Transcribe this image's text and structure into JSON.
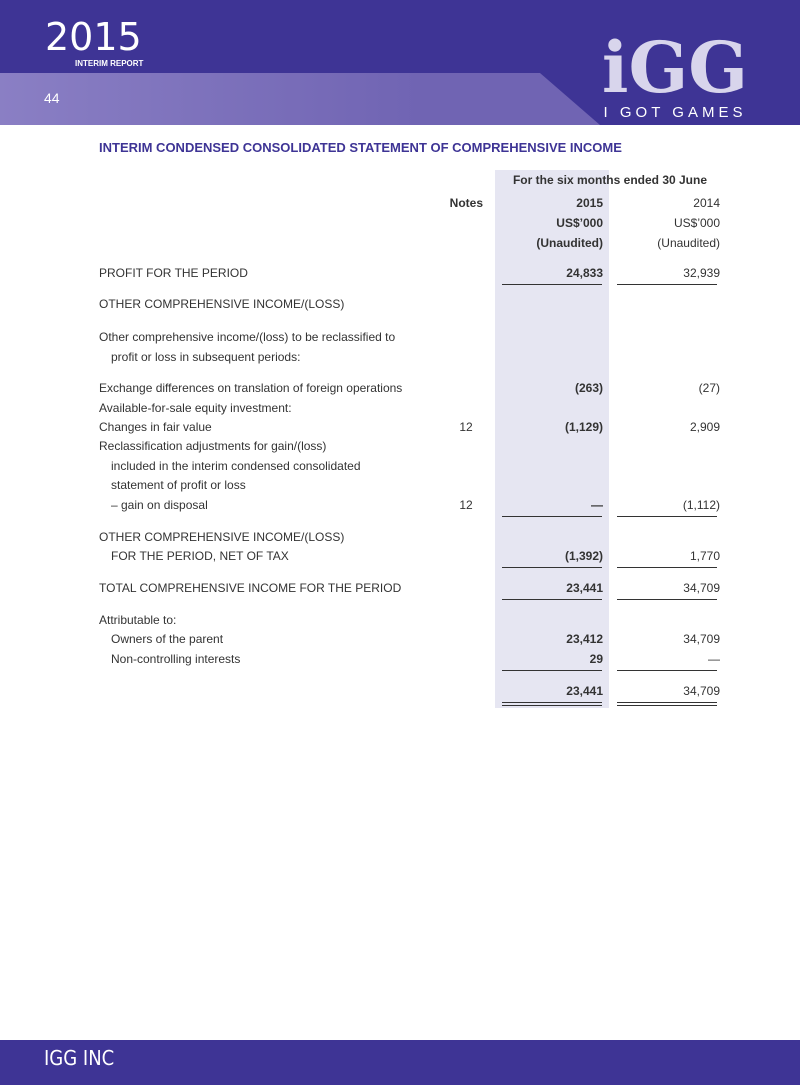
{
  "header": {
    "year": "2015",
    "report": "INTERIM REPORT",
    "page": "44",
    "logo": "iGG",
    "tagline": "I GOT GAMES"
  },
  "title": "INTERIM CONDENSED CONSOLIDATED STATEMENT OF COMPREHENSIVE INCOME",
  "table": {
    "period": "For the six months ended 30 June",
    "notes_header": "Notes",
    "columns": [
      {
        "year": "2015",
        "unit": "US$’000",
        "status": "(Unaudited)"
      },
      {
        "year": "2014",
        "unit": "US$’000",
        "status": "(Unaudited)"
      }
    ],
    "rows": [
      [
        "PROFIT FOR THE PERIOD",
        null,
        "24,833",
        "32,939"
      ],
      [
        "OTHER COMPREHENSIVE INCOME/(LOSS)",
        null,
        null,
        null
      ],
      [
        "Other comprehensive income/(loss) to be reclassified to",
        null,
        null,
        null
      ],
      [
        "profit or loss in subsequent periods:",
        null,
        null,
        null
      ],
      [
        "Exchange differences on translation of foreign operations",
        null,
        "(263)",
        "(27)"
      ],
      [
        "Available-for-sale equity investment:",
        null,
        null,
        null
      ],
      [
        "Changes in fair value",
        "12",
        "(1,129)",
        "2,909"
      ],
      [
        "Reclassification adjustments for gain/(loss)",
        null,
        null,
        null
      ],
      [
        "included in the interim condensed consolidated",
        null,
        null,
        null
      ],
      [
        "statement of profit or loss",
        null,
        null,
        null
      ],
      [
        "– gain on disposal",
        "12",
        "—",
        "(1,112)"
      ],
      [
        "OTHER COMPREHENSIVE INCOME/(LOSS)",
        null,
        null,
        null
      ],
      [
        "FOR THE PERIOD, NET OF TAX",
        null,
        "(1,392)",
        "1,770"
      ],
      [
        "TOTAL COMPREHENSIVE INCOME FOR THE PERIOD",
        null,
        "23,441",
        "34,709"
      ],
      [
        "Attributable to:",
        null,
        null,
        null
      ],
      [
        "Owners of the parent",
        null,
        "23,412",
        "34,709"
      ],
      [
        "Non-controlling interests",
        null,
        "29",
        "—"
      ],
      [
        null,
        null,
        "23,441",
        "34,709"
      ]
    ]
  },
  "footer": "IGG INC"
}
